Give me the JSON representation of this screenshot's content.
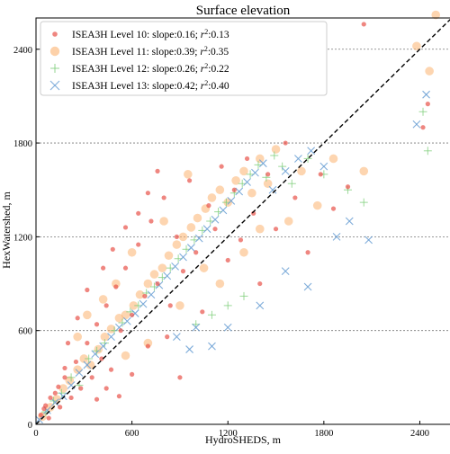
{
  "chart_data": {
    "type": "scatter",
    "title": "Surface elevation",
    "xlabel": "HydroSHEDS, m",
    "ylabel": "HexWatershed, m",
    "xlim": [
      0,
      2600
    ],
    "ylim": [
      0,
      2600
    ],
    "xticks": [
      0,
      600,
      1200,
      1800,
      2400
    ],
    "yticks": [
      0,
      600,
      1200,
      1800,
      2400
    ],
    "xtick_labels": [
      "0",
      "600",
      "1200",
      "1800",
      "2400"
    ],
    "ytick_labels": [
      "0",
      "600",
      "1200",
      "1800",
      "2400"
    ],
    "grid": "horizontal dashed",
    "legend_position": "top-left",
    "reference_line": "1:1 dashed",
    "series": [
      {
        "name": "ISEA3H Level 10: slope:0.16; r²:0.13",
        "legend_prefix": "ISEA3H Level 10: slope:0.16; ",
        "legend_r2": ":0.13",
        "color": "#e8534a",
        "marker": "dot",
        "points": [
          [
            30,
            60
          ],
          [
            60,
            120
          ],
          [
            80,
            40
          ],
          [
            120,
            200
          ],
          [
            150,
            110
          ],
          [
            180,
            300
          ],
          [
            220,
            170
          ],
          [
            250,
            400
          ],
          [
            280,
            230
          ],
          [
            320,
            520
          ],
          [
            350,
            300
          ],
          [
            380,
            640
          ],
          [
            410,
            420
          ],
          [
            440,
            760
          ],
          [
            470,
            350
          ],
          [
            500,
            880
          ],
          [
            530,
            600
          ],
          [
            560,
            1000
          ],
          [
            600,
            700
          ],
          [
            640,
            1150
          ],
          [
            680,
            820
          ],
          [
            720,
            1300
          ],
          [
            760,
            900
          ],
          [
            800,
            1450
          ],
          [
            840,
            760
          ],
          [
            880,
            1200
          ],
          [
            920,
            980
          ],
          [
            960,
            1560
          ],
          [
            1000,
            1100
          ],
          [
            1040,
            720
          ],
          [
            1080,
            1400
          ],
          [
            1120,
            1250
          ],
          [
            1160,
            1650
          ],
          [
            1200,
            1050
          ],
          [
            1240,
            1500
          ],
          [
            1280,
            1180
          ],
          [
            1320,
            1700
          ],
          [
            1360,
            1350
          ],
          [
            1400,
            900
          ],
          [
            1450,
            1600
          ],
          [
            1500,
            1250
          ],
          [
            1560,
            1800
          ],
          [
            1620,
            1450
          ],
          [
            1700,
            1100
          ],
          [
            1780,
            1600
          ],
          [
            1860,
            1380
          ],
          [
            1950,
            1520
          ],
          [
            2050,
            2560
          ],
          [
            2450,
            2050
          ],
          [
            2420,
            1900
          ],
          [
            380,
            160
          ],
          [
            440,
            230
          ],
          [
            520,
            180
          ],
          [
            600,
            320
          ],
          [
            700,
            500
          ],
          [
            820,
            560
          ],
          [
            900,
            300
          ],
          [
            200,
            520
          ],
          [
            260,
            680
          ],
          [
            320,
            860
          ],
          [
            420,
            1000
          ],
          [
            480,
            1120
          ],
          [
            560,
            1260
          ],
          [
            640,
            1350
          ],
          [
            700,
            1480
          ],
          [
            760,
            1620
          ],
          [
            180,
            360
          ],
          [
            140,
            240
          ],
          [
            90,
            170
          ],
          [
            50,
            100
          ]
        ]
      },
      {
        "name": "ISEA3H Level 11: slope:0.39; r²:0.35",
        "legend_prefix": "ISEA3H Level 11: slope:0.39; ",
        "legend_r2": ":0.35",
        "color": "#fbb26f",
        "marker": "large-dot",
        "points": [
          [
            40,
            50
          ],
          [
            90,
            110
          ],
          [
            130,
            160
          ],
          [
            170,
            230
          ],
          [
            210,
            280
          ],
          [
            260,
            350
          ],
          [
            300,
            420
          ],
          [
            340,
            380
          ],
          [
            390,
            480
          ],
          [
            430,
            560
          ],
          [
            470,
            610
          ],
          [
            520,
            680
          ],
          [
            560,
            700
          ],
          [
            610,
            760
          ],
          [
            650,
            830
          ],
          [
            700,
            900
          ],
          [
            740,
            960
          ],
          [
            790,
            1000
          ],
          [
            830,
            1080
          ],
          [
            880,
            1150
          ],
          [
            920,
            1200
          ],
          [
            970,
            1260
          ],
          [
            1010,
            1320
          ],
          [
            1060,
            1380
          ],
          [
            1100,
            1450
          ],
          [
            1150,
            1500
          ],
          [
            1200,
            1420
          ],
          [
            1250,
            1560
          ],
          [
            1300,
            1620
          ],
          [
            1350,
            1480
          ],
          [
            1400,
            1700
          ],
          [
            1450,
            1540
          ],
          [
            1500,
            1760
          ],
          [
            1580,
            1300
          ],
          [
            1660,
            1620
          ],
          [
            1760,
            1400
          ],
          [
            1860,
            1700
          ],
          [
            2050,
            1620
          ],
          [
            2500,
            2620
          ],
          [
            2380,
            2420
          ],
          [
            2460,
            2260
          ],
          [
            600,
            1100
          ],
          [
            500,
            900
          ],
          [
            420,
            800
          ],
          [
            320,
            700
          ],
          [
            260,
            560
          ],
          [
            800,
            1300
          ],
          [
            950,
            1600
          ],
          [
            1050,
            1000
          ],
          [
            1150,
            900
          ],
          [
            1300,
            1100
          ],
          [
            1400,
            1250
          ],
          [
            700,
            520
          ],
          [
            560,
            440
          ],
          [
            900,
            760
          ]
        ]
      },
      {
        "name": "ISEA3H Level 12: slope:0.26; r²:0.22",
        "legend_prefix": "ISEA3H Level 12: slope:0.26; ",
        "legend_r2": ":0.22",
        "color": "#7fcf7a",
        "marker": "plus",
        "points": [
          [
            60,
            80
          ],
          [
            110,
            150
          ],
          [
            160,
            200
          ],
          [
            220,
            300
          ],
          [
            270,
            250
          ],
          [
            330,
            420
          ],
          [
            380,
            470
          ],
          [
            430,
            520
          ],
          [
            490,
            600
          ],
          [
            540,
            650
          ],
          [
            590,
            720
          ],
          [
            640,
            760
          ],
          [
            690,
            840
          ],
          [
            740,
            880
          ],
          [
            790,
            940
          ],
          [
            840,
            1000
          ],
          [
            890,
            1060
          ],
          [
            940,
            1120
          ],
          [
            990,
            1180
          ],
          [
            1040,
            1240
          ],
          [
            1090,
            1300
          ],
          [
            1140,
            1360
          ],
          [
            1190,
            1420
          ],
          [
            1240,
            1480
          ],
          [
            1290,
            1540
          ],
          [
            1340,
            1600
          ],
          [
            1390,
            1660
          ],
          [
            1440,
            1580
          ],
          [
            1490,
            1720
          ],
          [
            1540,
            1650
          ],
          [
            1600,
            1540
          ],
          [
            1700,
            1700
          ],
          [
            1800,
            1600
          ],
          [
            1950,
            1500
          ],
          [
            2050,
            1420
          ],
          [
            2450,
            1750
          ],
          [
            2420,
            2000
          ],
          [
            1300,
            820
          ],
          [
            1200,
            760
          ],
          [
            1100,
            700
          ],
          [
            1000,
            640
          ]
        ]
      },
      {
        "name": "ISEA3H Level 13: slope:0.42; r²:0.40",
        "legend_prefix": "ISEA3H Level 13: slope:0.42; ",
        "legend_r2": ":0.40",
        "color": "#6a9fd4",
        "marker": "x",
        "points": [
          [
            20,
            30
          ],
          [
            70,
            90
          ],
          [
            120,
            140
          ],
          [
            170,
            180
          ],
          [
            220,
            250
          ],
          [
            270,
            330
          ],
          [
            320,
            380
          ],
          [
            370,
            450
          ],
          [
            420,
            500
          ],
          [
            470,
            560
          ],
          [
            520,
            620
          ],
          [
            570,
            660
          ],
          [
            620,
            710
          ],
          [
            670,
            770
          ],
          [
            720,
            830
          ],
          [
            770,
            890
          ],
          [
            820,
            950
          ],
          [
            870,
            1010
          ],
          [
            920,
            1070
          ],
          [
            970,
            1130
          ],
          [
            1020,
            1190
          ],
          [
            1070,
            1250
          ],
          [
            1120,
            1310
          ],
          [
            1170,
            1370
          ],
          [
            1220,
            1430
          ],
          [
            1270,
            1490
          ],
          [
            1320,
            1550
          ],
          [
            1370,
            1610
          ],
          [
            1420,
            1670
          ],
          [
            1480,
            1500
          ],
          [
            1560,
            1620
          ],
          [
            1640,
            1700
          ],
          [
            1720,
            1750
          ],
          [
            1800,
            1650
          ],
          [
            1880,
            1200
          ],
          [
            1960,
            1300
          ],
          [
            2080,
            1180
          ],
          [
            2440,
            2110
          ],
          [
            2380,
            1920
          ],
          [
            1000,
            620
          ],
          [
            960,
            480
          ],
          [
            880,
            560
          ],
          [
            1100,
            500
          ],
          [
            1200,
            620
          ],
          [
            1400,
            760
          ],
          [
            1560,
            980
          ],
          [
            1700,
            880
          ]
        ]
      }
    ]
  }
}
